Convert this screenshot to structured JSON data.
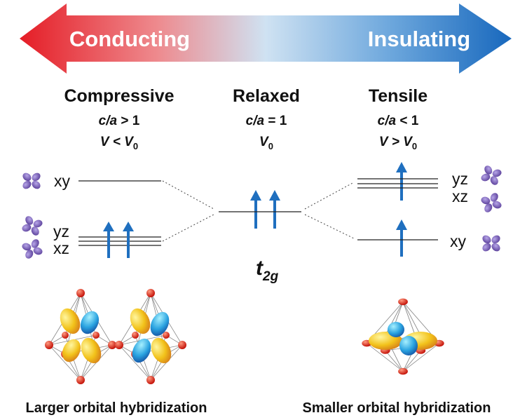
{
  "arrow": {
    "left": "Conducting",
    "right": "Insulating"
  },
  "columns": [
    {
      "title": "Compressive",
      "ratio_var": "c/a",
      "ratio_rel": "> 1",
      "volume": "V < V",
      "volume_sub": "0"
    },
    {
      "title": "Relaxed",
      "ratio_var": "c/a",
      "ratio_rel": "= 1",
      "volume": "V",
      "volume_sub": "0"
    },
    {
      "title": "Tensile",
      "ratio_var": "c/a",
      "ratio_rel": "< 1",
      "volume": "V > V",
      "volume_sub": "0"
    }
  ],
  "levels": {
    "left": [
      "xy",
      "yz",
      "xz"
    ],
    "right": [
      "yz",
      "xz",
      "xy"
    ]
  },
  "center": {
    "label": "t",
    "label_sub": "2g"
  },
  "captions": [
    "Larger orbital hybridization",
    "Smaller orbital hybridization"
  ]
}
